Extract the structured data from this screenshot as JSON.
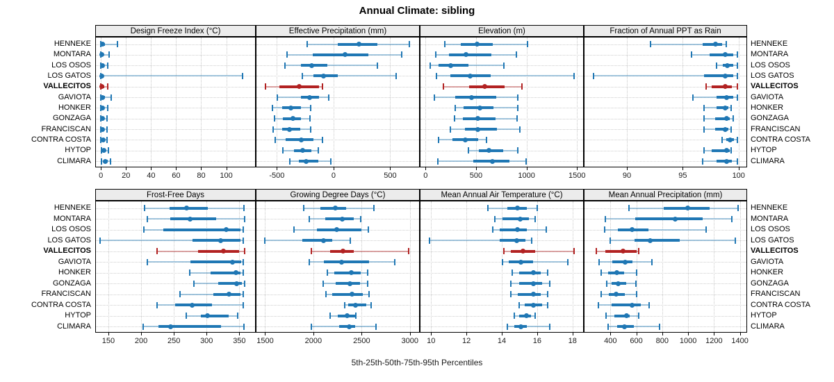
{
  "chart_data": {
    "type": "scatter",
    "variant": "five-number percentile interval plot (dot = median, thick bar = 25th-75th, thin line with caps = 5th-95th)",
    "title": "Annual Climate: sibling",
    "footer": "5th-25th-50th-75th-95th Percentiles",
    "legend_position": "none",
    "grid": "dotted vertical at ticks and dotted horizontal per site row",
    "sites": [
      "HENNEKE",
      "MONTARA",
      "LOS OSOS",
      "LOS GATOS",
      "VALLECITOS",
      "GAVIOTA",
      "HONKER",
      "GONZAGA",
      "FRANCISCAN",
      "CONTRA COSTA",
      "HYTOP",
      "CLIMARA"
    ],
    "highlighted_site": "VALLECITOS",
    "percentiles": [
      5,
      25,
      50,
      75,
      95
    ],
    "colors": {
      "primary": "#1F77B4",
      "primary_light": "rgba(31,119,180,0.40)",
      "highlight": "#B22222",
      "highlight_light": "rgba(178,34,34,0.40)",
      "grid": "#C8C8C8",
      "header_bg": "#ECECEC",
      "border": "#000000"
    },
    "panels": [
      {
        "label": "Design Freeze Index (°C)",
        "row": 0,
        "ticks": [
          0,
          20,
          40,
          60,
          80,
          100
        ],
        "xlim": [
          -4,
          123
        ],
        "values": [
          [
            0,
            0.5,
            1.5,
            3,
            13
          ],
          [
            0,
            0.2,
            0.8,
            2,
            6.5
          ],
          [
            0,
            0.3,
            1,
            2.5,
            5.5
          ],
          [
            0,
            0.2,
            0.8,
            2,
            113
          ],
          [
            0,
            0.2,
            0.8,
            2.5,
            5.5
          ],
          [
            0,
            0.3,
            1,
            3,
            8
          ],
          [
            0,
            0.3,
            1,
            2.5,
            5.5
          ],
          [
            0,
            0.3,
            1,
            2,
            5
          ],
          [
            0,
            0.3,
            1,
            2.5,
            5
          ],
          [
            0,
            0.8,
            1.8,
            3,
            4.8
          ],
          [
            0.2,
            1.2,
            2.5,
            4,
            6
          ],
          [
            0.5,
            2,
            3.5,
            5.2,
            7.5
          ]
        ]
      },
      {
        "label": "Effective Precipitation (mm)",
        "row": 0,
        "ticks": [
          -500,
          0,
          500
        ],
        "xlim": [
          -680,
          755
        ],
        "values": [
          [
            -230,
            40,
            225,
            390,
            670
          ],
          [
            -410,
            -185,
            100,
            310,
            600
          ],
          [
            -430,
            -290,
            -195,
            -55,
            390
          ],
          [
            -275,
            -175,
            -90,
            40,
            550
          ],
          [
            -600,
            -480,
            -300,
            -130,
            -95
          ],
          [
            -495,
            -285,
            -210,
            -125,
            -40
          ],
          [
            -540,
            -455,
            -375,
            -290,
            -200
          ],
          [
            -520,
            -445,
            -360,
            -290,
            -205
          ],
          [
            -535,
            -455,
            -390,
            -295,
            -200
          ],
          [
            -515,
            -420,
            -285,
            -180,
            -95
          ],
          [
            -445,
            -350,
            -270,
            -195,
            -135
          ],
          [
            -385,
            -305,
            -240,
            -135,
            -25
          ]
        ]
      },
      {
        "label": "Elevation (m)",
        "row": 0,
        "ticks": [
          0,
          500,
          1000,
          1500
        ],
        "xlim": [
          -50,
          1560
        ],
        "values": [
          [
            190,
            350,
            510,
            665,
            1010
          ],
          [
            100,
            235,
            400,
            655,
            900
          ],
          [
            45,
            130,
            250,
            425,
            775
          ],
          [
            105,
            245,
            440,
            645,
            1470
          ],
          [
            180,
            430,
            585,
            780,
            955
          ],
          [
            90,
            295,
            455,
            700,
            910
          ],
          [
            295,
            380,
            535,
            670,
            915
          ],
          [
            285,
            370,
            520,
            690,
            905
          ],
          [
            245,
            390,
            520,
            710,
            935
          ],
          [
            130,
            265,
            395,
            520,
            605
          ],
          [
            425,
            530,
            630,
            770,
            915
          ],
          [
            120,
            475,
            665,
            830,
            995
          ]
        ]
      },
      {
        "label": "Fraction of Annual PPT as Rain",
        "row": 0,
        "ticks": [
          90,
          95,
          100
        ],
        "xlim": [
          86.2,
          100.7
        ],
        "values": [
          [
            92.1,
            96.8,
            97.9,
            98.5,
            98.9
          ],
          [
            95.8,
            97.4,
            98.8,
            99.5,
            99.9
          ],
          [
            98.0,
            98.6,
            99.0,
            99.5,
            99.9
          ],
          [
            87.0,
            96.9,
            98.8,
            99.5,
            99.9
          ],
          [
            97.1,
            97.6,
            98.8,
            99.4,
            99.9
          ],
          [
            95.9,
            98.0,
            98.9,
            99.5,
            99.9
          ],
          [
            96.9,
            98.0,
            98.8,
            99.1,
            99.3
          ],
          [
            96.9,
            97.9,
            98.9,
            99.2,
            99.5
          ],
          [
            96.9,
            97.9,
            98.8,
            99.1,
            99.3
          ],
          [
            98.5,
            98.9,
            99.25,
            99.6,
            99.9
          ],
          [
            96.9,
            97.6,
            98.9,
            99.2,
            99.3
          ],
          [
            96.8,
            98.0,
            98.9,
            99.4,
            99.9
          ]
        ]
      },
      {
        "label": "Frost-Free Days",
        "row": 1,
        "ticks": [
          150,
          200,
          250,
          300,
          350
        ],
        "xlim": [
          131,
          374
        ],
        "values": [
          [
            205,
            243,
            270,
            302,
            357
          ],
          [
            210,
            245,
            275,
            315,
            358
          ],
          [
            204,
            234,
            330,
            352,
            356
          ],
          [
            137,
            278,
            322,
            352,
            356
          ],
          [
            224,
            287,
            326,
            350,
            358
          ],
          [
            210,
            275,
            339,
            353,
            356
          ],
          [
            274,
            306,
            345,
            352,
            356
          ],
          [
            281,
            318,
            346,
            354,
            358
          ],
          [
            259,
            310,
            334,
            352,
            356
          ],
          [
            224,
            252,
            278,
            308,
            356
          ],
          [
            269,
            291,
            301,
            334,
            348
          ],
          [
            203,
            227,
            245,
            322,
            357
          ]
        ]
      },
      {
        "label": "Growing Degree Days (°C)",
        "row": 1,
        "ticks": [
          1500,
          2000,
          2500,
          3000
        ],
        "xlim": [
          1410,
          3095
        ],
        "values": [
          [
            1900,
            2070,
            2230,
            2340,
            2630
          ],
          [
            1960,
            2125,
            2300,
            2420,
            2490
          ],
          [
            1800,
            2040,
            2240,
            2500,
            2570
          ],
          [
            1500,
            1885,
            2105,
            2195,
            2380
          ],
          [
            1980,
            2170,
            2310,
            2420,
            2990
          ],
          [
            1955,
            2110,
            2295,
            2575,
            2845
          ],
          [
            2145,
            2220,
            2390,
            2490,
            2560
          ],
          [
            2100,
            2230,
            2375,
            2480,
            2560
          ],
          [
            2130,
            2195,
            2400,
            2515,
            2575
          ],
          [
            2325,
            2360,
            2435,
            2550,
            2595
          ],
          [
            2170,
            2250,
            2350,
            2430,
            2440
          ],
          [
            1980,
            2265,
            2370,
            2430,
            2645
          ]
        ]
      },
      {
        "label": "Mean Annual Air Temperature (°C)",
        "row": 1,
        "ticks": [
          10,
          12,
          14,
          16,
          18
        ],
        "xlim": [
          9.4,
          18.6
        ],
        "values": [
          [
            13.2,
            14.3,
            14.9,
            15.4,
            16.0
          ],
          [
            13.6,
            14.05,
            15.05,
            15.55,
            15.9
          ],
          [
            13.5,
            13.9,
            14.9,
            15.4,
            16.5
          ],
          [
            9.9,
            13.9,
            14.85,
            15.35,
            15.7
          ],
          [
            14.1,
            14.5,
            15.2,
            15.9,
            18.1
          ],
          [
            14.05,
            14.4,
            15.1,
            15.75,
            17.75
          ],
          [
            14.6,
            15.0,
            15.8,
            16.2,
            16.6
          ],
          [
            14.5,
            15.0,
            15.8,
            16.3,
            16.7
          ],
          [
            14.5,
            14.9,
            15.8,
            16.2,
            16.6
          ],
          [
            15.0,
            15.3,
            15.8,
            16.3,
            16.6
          ],
          [
            14.7,
            15.0,
            15.4,
            15.65,
            15.9
          ],
          [
            14.3,
            14.7,
            15.1,
            15.4,
            16.7
          ]
        ]
      },
      {
        "label": "Mean Annual Precipitation (mm)",
        "row": 1,
        "ticks": [
          400,
          600,
          800,
          1000,
          1200,
          1400
        ],
        "xlim": [
          200,
          1450
        ],
        "values": [
          [
            545,
            810,
            995,
            1165,
            1385
          ],
          [
            360,
            590,
            900,
            1110,
            1335
          ],
          [
            355,
            460,
            565,
            695,
            1140
          ],
          [
            400,
            585,
            705,
            935,
            1365
          ],
          [
            290,
            360,
            500,
            600,
            620
          ],
          [
            315,
            415,
            515,
            570,
            720
          ],
          [
            330,
            385,
            450,
            505,
            600
          ],
          [
            370,
            410,
            460,
            520,
            595
          ],
          [
            330,
            390,
            445,
            510,
            600
          ],
          [
            305,
            410,
            565,
            635,
            700
          ],
          [
            365,
            430,
            525,
            550,
            620
          ],
          [
            385,
            450,
            510,
            580,
            780
          ]
        ]
      }
    ]
  }
}
